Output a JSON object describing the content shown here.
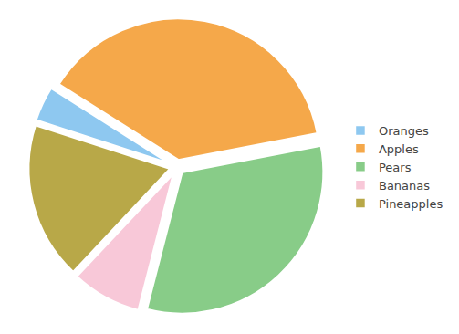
{
  "chart_data": {
    "type": "pie",
    "categories": [
      "Oranges",
      "Apples",
      "Pears",
      "Bananas",
      "Pineapples"
    ],
    "values": [
      4,
      38,
      32,
      8,
      18
    ],
    "colors": [
      "#8ec8f0",
      "#f5a84a",
      "#88cc88",
      "#f8c8d8",
      "#b8a848"
    ],
    "legend": "right"
  }
}
